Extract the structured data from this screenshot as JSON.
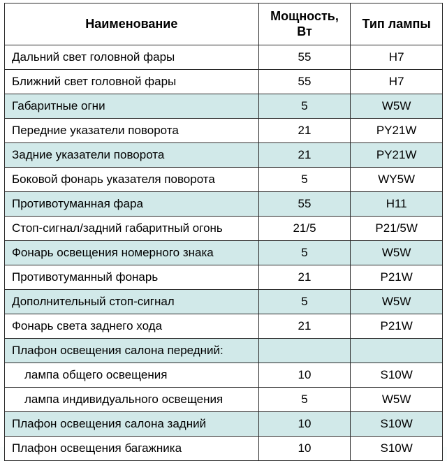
{
  "table": {
    "type": "table",
    "columns": [
      "Наименование",
      "Мощность, Вт",
      "Тип лампы"
    ],
    "column_align": [
      "left",
      "center",
      "center"
    ],
    "border_color": "#2a2a2a",
    "header_bg": "#ffffff",
    "tint_bg": "#d1e9e9",
    "plain_bg": "#ffffff",
    "header_fontsize": 18,
    "cell_fontsize": 17,
    "rows": [
      {
        "name": "Дальний свет головной фары",
        "power": "55",
        "type": "H7",
        "tint": false,
        "indent": false
      },
      {
        "name": "Ближний свет головной фары",
        "power": "55",
        "type": "H7",
        "tint": false,
        "indent": false
      },
      {
        "name": "Габаритные огни",
        "power": "5",
        "type": "W5W",
        "tint": true,
        "indent": false
      },
      {
        "name": "Передние указатели поворота",
        "power": "21",
        "type": "PY21W",
        "tint": false,
        "indent": false
      },
      {
        "name": "Задние указатели поворота",
        "power": "21",
        "type": "PY21W",
        "tint": true,
        "indent": false
      },
      {
        "name": "Боковой фонарь указателя поворота",
        "power": "5",
        "type": "WY5W",
        "tint": false,
        "indent": false
      },
      {
        "name": "Противотуманная фара",
        "power": "55",
        "type": "H11",
        "tint": true,
        "indent": false
      },
      {
        "name": "Стоп-сигнал/задний габаритный огонь",
        "power": "21/5",
        "type": "P21/5W",
        "tint": false,
        "indent": false
      },
      {
        "name": "Фонарь освещения номерного знака",
        "power": "5",
        "type": "W5W",
        "tint": true,
        "indent": false
      },
      {
        "name": "Противотуманный фонарь",
        "power": "21",
        "type": "P21W",
        "tint": false,
        "indent": false
      },
      {
        "name": "Дополнительный стоп-сигнал",
        "power": "5",
        "type": "W5W",
        "tint": true,
        "indent": false
      },
      {
        "name": "Фонарь света заднего хода",
        "power": "21",
        "type": "P21W",
        "tint": false,
        "indent": false
      },
      {
        "name": "Плафон освещения салона передний:",
        "power": "",
        "type": "",
        "tint": true,
        "indent": false
      },
      {
        "name": "лампа общего освещения",
        "power": "10",
        "type": "S10W",
        "tint": false,
        "indent": true
      },
      {
        "name": "лампа индивидуального освещения",
        "power": "5",
        "type": "W5W",
        "tint": false,
        "indent": true
      },
      {
        "name": "Плафон освещения салона задний",
        "power": "10",
        "type": "S10W",
        "tint": true,
        "indent": false
      },
      {
        "name": "Плафон освещения багажника",
        "power": "10",
        "type": "S10W",
        "tint": false,
        "indent": false
      }
    ]
  }
}
